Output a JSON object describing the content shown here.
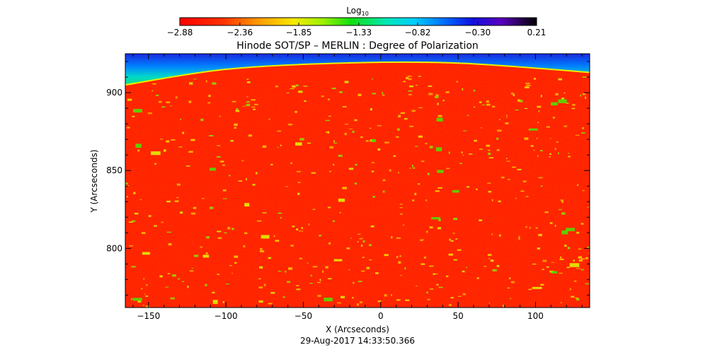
{
  "chart_data": {
    "type": "heatmap",
    "title": "Hinode SOT/SP – MERLIN : Degree of Polarization",
    "xlabel": "X (Arcseconds)",
    "ylabel": "Y (Arcseconds)",
    "date_label": "29-Aug-2017 14:33:50.366",
    "xlim": [
      -165,
      135
    ],
    "ylim": [
      762,
      925
    ],
    "x_ticks": [
      -150,
      -100,
      -50,
      0,
      50,
      100
    ],
    "x_tick_labels": [
      "−150",
      "−100",
      "−50",
      "0",
      "50",
      "100"
    ],
    "y_ticks": [
      800,
      850,
      900
    ],
    "y_tick_labels": [
      "800",
      "850",
      "900"
    ],
    "colorbar": {
      "label_base": "Log",
      "label_sub": "10",
      "range": [
        -2.88,
        0.21
      ],
      "ticks": [
        -2.88,
        -2.36,
        -1.85,
        -1.33,
        -0.82,
        -0.3,
        0.21
      ],
      "tick_labels": [
        "−2.88",
        "−2.36",
        "−1.85",
        "−1.33",
        "−0.82",
        "−0.30",
        "0.21"
      ],
      "colormap": "rainbow (red to black)"
    },
    "limb": {
      "description": "solar limb arc near top; off-limb region high values (blue/cyan)",
      "limb_y_at_x": [
        [
          -165,
          905
        ],
        [
          -100,
          915
        ],
        [
          -25,
          919
        ],
        [
          50,
          919
        ],
        [
          135,
          913
        ]
      ]
    },
    "disk_typical_log_value": -2.75
  },
  "colors": {
    "disk": "#ff2a00",
    "limb_band": "#10e070",
    "off_limb": "#1a2fe0"
  }
}
